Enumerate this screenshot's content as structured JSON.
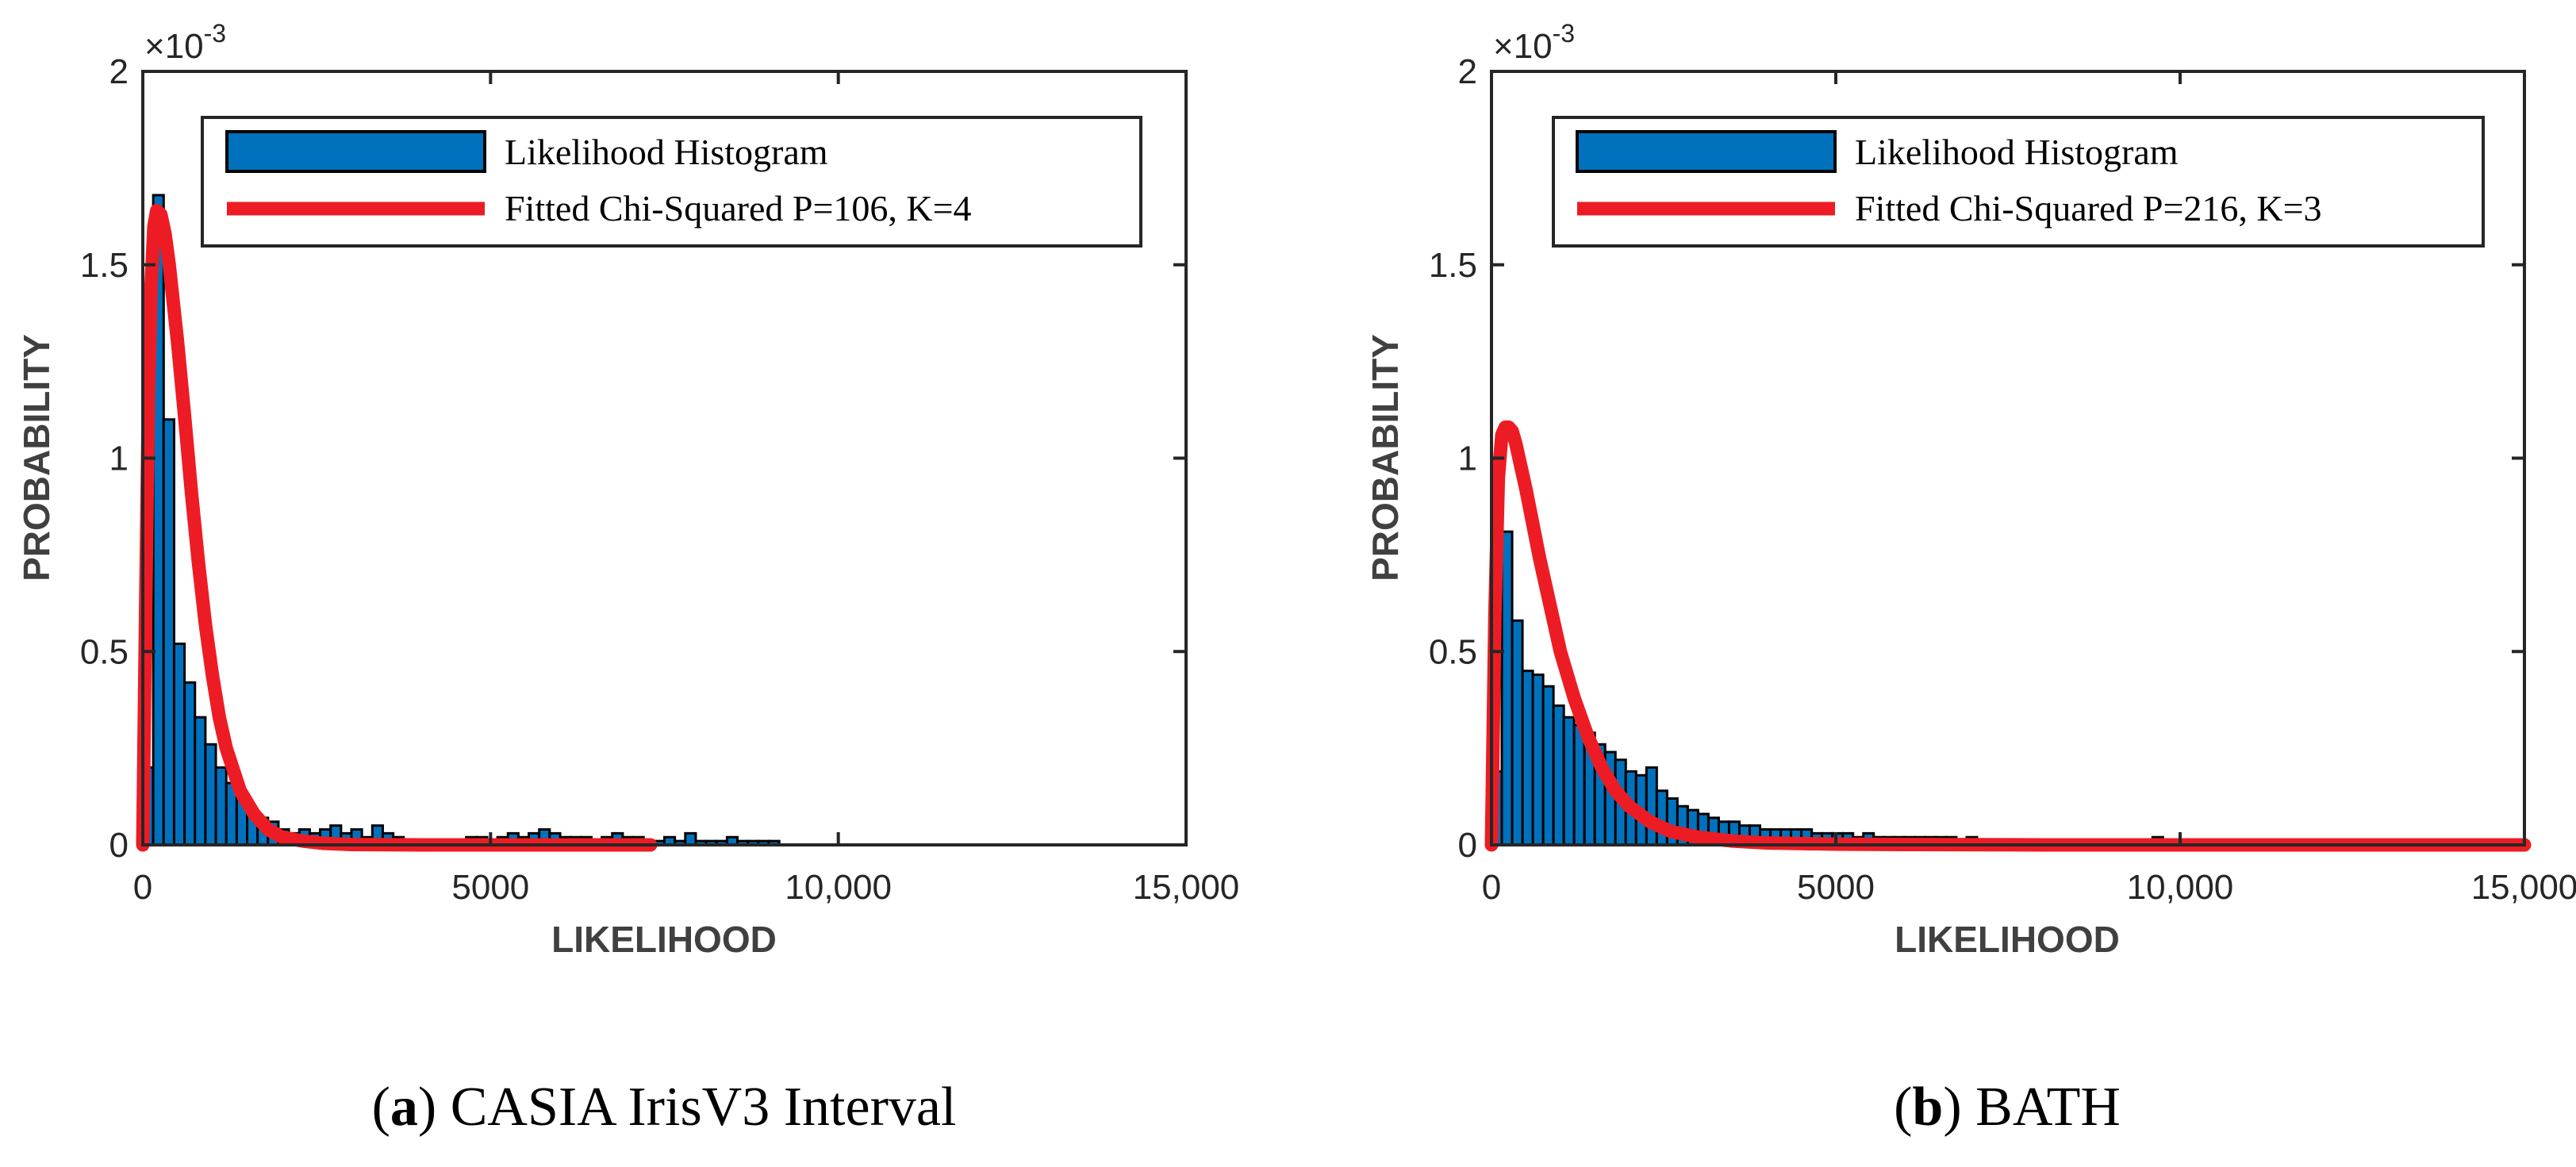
{
  "chart_data": [
    {
      "type": "bar",
      "id": "a",
      "caption_letter": "a",
      "caption_text": " CASIA IrisV3 Interval",
      "xlabel": "LIKELIHOOD",
      "ylabel": "PROBABILITY",
      "xlim": [
        0,
        15000
      ],
      "ylim": [
        0,
        0.002
      ],
      "xticks": [
        0,
        5000,
        10000,
        15000
      ],
      "xtick_labels": [
        "0",
        "5000",
        "10,000",
        "15,000"
      ],
      "yticks": [
        0,
        0.0005,
        0.001,
        0.0015,
        0.002
      ],
      "ytick_labels": [
        "0",
        "0.5",
        "1",
        "1.5",
        "2"
      ],
      "y_exponent_label": "×10",
      "y_exponent": "-3",
      "bin_width": 150,
      "series": [
        {
          "name": "Likelihood Histogram",
          "kind": "histogram",
          "color": "#0072BD",
          "values": [
            0.0002,
            0.00168,
            0.0011,
            0.00052,
            0.00042,
            0.00033,
            0.00026,
            0.0002,
            0.00016,
            0.00012,
            9e-05,
            7e-05,
            6e-05,
            4e-05,
            3e-05,
            4e-05,
            3e-05,
            4e-05,
            5e-05,
            3e-05,
            4e-05,
            2e-05,
            5e-05,
            3e-05,
            2e-05,
            1e-05,
            1e-05,
            1e-05,
            1e-05,
            1e-05,
            1e-05,
            2e-05,
            2e-05,
            1e-05,
            2e-05,
            3e-05,
            2e-05,
            3e-05,
            4e-05,
            3e-05,
            2e-05,
            2e-05,
            2e-05,
            1e-05,
            2e-05,
            3e-05,
            2e-05,
            2e-05,
            1e-05,
            1e-05,
            2e-05,
            1e-05,
            3e-05,
            1e-05,
            1e-05,
            1e-05,
            2e-05,
            1e-05,
            1e-05,
            1e-05,
            1e-05
          ]
        },
        {
          "name": "Fitted Chi-Squared P=106, K=4",
          "kind": "curve",
          "color": "#ED1C24",
          "x": [
            0,
            40,
            80,
            120,
            160,
            200,
            260,
            320,
            380,
            440,
            500,
            600,
            700,
            800,
            900,
            1000,
            1100,
            1200,
            1400,
            1600,
            1800,
            2000,
            2300,
            2600,
            3000,
            4000,
            5000,
            6000,
            7300
          ],
          "y": [
            0,
            0.0006,
            0.00115,
            0.00145,
            0.0016,
            0.00164,
            0.00163,
            0.00158,
            0.0015,
            0.0014,
            0.0013,
            0.00111,
            0.00091,
            0.00073,
            0.00057,
            0.00044,
            0.00033,
            0.00025,
            0.00014,
            8e-05,
            4e-05,
            2e-05,
            1e-05,
            4e-06,
            1e-06,
            0,
            0,
            0,
            0
          ]
        }
      ]
    },
    {
      "type": "bar",
      "id": "b",
      "caption_letter": "b",
      "caption_text": " BATH",
      "xlabel": "LIKELIHOOD",
      "ylabel": "PROBABILITY",
      "xlim": [
        0,
        15000
      ],
      "ylim": [
        0,
        0.002
      ],
      "xticks": [
        0,
        5000,
        10000,
        15000
      ],
      "xtick_labels": [
        "0",
        "5000",
        "10,000",
        "15,000"
      ],
      "yticks": [
        0,
        0.0005,
        0.001,
        0.0015,
        0.002
      ],
      "ytick_labels": [
        "0",
        "0.5",
        "1",
        "1.5",
        "2"
      ],
      "y_exponent_label": "×10",
      "y_exponent": "-3",
      "bin_width": 150,
      "series": [
        {
          "name": "Likelihood Histogram",
          "kind": "histogram",
          "color": "#0072BD",
          "values": [
            0.00019,
            0.00081,
            0.00058,
            0.00045,
            0.00044,
            0.00041,
            0.00036,
            0.00033,
            0.00031,
            0.00029,
            0.00026,
            0.00024,
            0.00022,
            0.00019,
            0.00018,
            0.0002,
            0.00014,
            0.00012,
            0.0001,
            9e-05,
            8e-05,
            7e-05,
            6e-05,
            6e-05,
            5e-05,
            5e-05,
            4e-05,
            4e-05,
            4e-05,
            4e-05,
            4e-05,
            3e-05,
            3e-05,
            3e-05,
            3e-05,
            2e-05,
            3e-05,
            2e-05,
            2e-05,
            2e-05,
            2e-05,
            2e-05,
            2e-05,
            2e-05,
            2e-05,
            1e-05,
            2e-05,
            1e-05,
            1e-05,
            1e-05,
            1e-05,
            1e-05,
            1e-05,
            1e-05,
            1e-05,
            1e-05,
            1e-05,
            1e-05,
            1e-05,
            1e-05,
            1e-05,
            1e-05,
            1e-05,
            1e-05,
            2e-05,
            1e-05,
            1e-05,
            1e-05,
            1e-05,
            1e-05,
            1e-05,
            1e-05,
            1e-05,
            1e-05,
            1e-05,
            1e-05,
            1e-05,
            1e-05,
            1e-05,
            1e-05,
            1e-05,
            1e-05,
            1e-05,
            1e-05,
            1e-05,
            1e-05,
            1e-05,
            1e-05,
            1e-05,
            1e-05,
            1e-05,
            1e-05,
            1e-05,
            1e-05,
            1e-05,
            1e-05,
            1e-05,
            1e-05,
            1e-05,
            1e-05
          ]
        },
        {
          "name": "Fitted Chi-Squared P=216, K=3",
          "kind": "curve",
          "color": "#ED1C24",
          "x": [
            0,
            50,
            100,
            150,
            200,
            250,
            300,
            350,
            400,
            500,
            600,
            700,
            800,
            900,
            1000,
            1200,
            1400,
            1600,
            1800,
            2000,
            2300,
            2600,
            3000,
            3500,
            4000,
            5000,
            6000,
            8000,
            10000,
            12000,
            15000
          ],
          "y": [
            0,
            0.0006,
            0.00095,
            0.00106,
            0.00108,
            0.00108,
            0.00107,
            0.00104,
            0.001,
            0.00092,
            0.00083,
            0.00074,
            0.00066,
            0.00058,
            0.0005,
            0.00038,
            0.00028,
            0.0002,
            0.00014,
            0.0001,
            6e-05,
            3.5e-05,
            2e-05,
            1e-05,
            5e-06,
            2e-06,
            1e-06,
            0,
            0,
            0,
            0
          ]
        }
      ]
    }
  ]
}
